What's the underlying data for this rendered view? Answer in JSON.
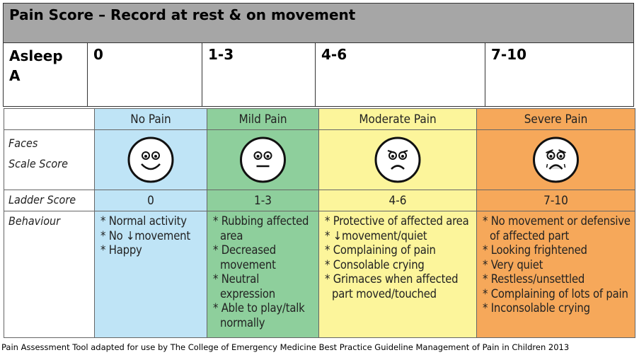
{
  "header": {
    "title": "Pain Score – Record  at rest & on movement"
  },
  "top_row": {
    "label_lines": [
      "Asleep",
      "A"
    ],
    "scores": [
      "0",
      "1-3",
      "4-6",
      "7-10"
    ]
  },
  "table": {
    "columns": [
      "No Pain",
      "Mild Pain",
      "Moderate Pain",
      "Severe Pain"
    ],
    "row_labels": {
      "faces": [
        "Faces",
        "Scale Score"
      ],
      "ladder": "Ladder Score",
      "behaviour": "Behaviour"
    },
    "ladder_scores": [
      "0",
      "1-3",
      "4-6",
      "7-10"
    ],
    "behaviour": [
      [
        "* Normal activity",
        "* No ↓movement",
        "* Happy"
      ],
      [
        "* Rubbing affected area",
        "* Decreased movement",
        "* Neutral expression",
        "* Able to play/talk normally"
      ],
      [
        "* Protective of affected area",
        "* ↓movement/quiet",
        "* Complaining of pain",
        "* Consolable crying",
        "* Grimaces when affected part moved/touched"
      ],
      [
        "* No movement or defensive of affected part",
        "* Looking frightened",
        "* Very quiet",
        "* Restless/unsettled",
        "* Complaining of lots of pain",
        "* Inconsolable crying"
      ]
    ]
  },
  "footer": "Pain Assessment Tool adapted for use by The College of Emergency Medicine Best Practice Guideline Management of Pain in Children 2013"
}
